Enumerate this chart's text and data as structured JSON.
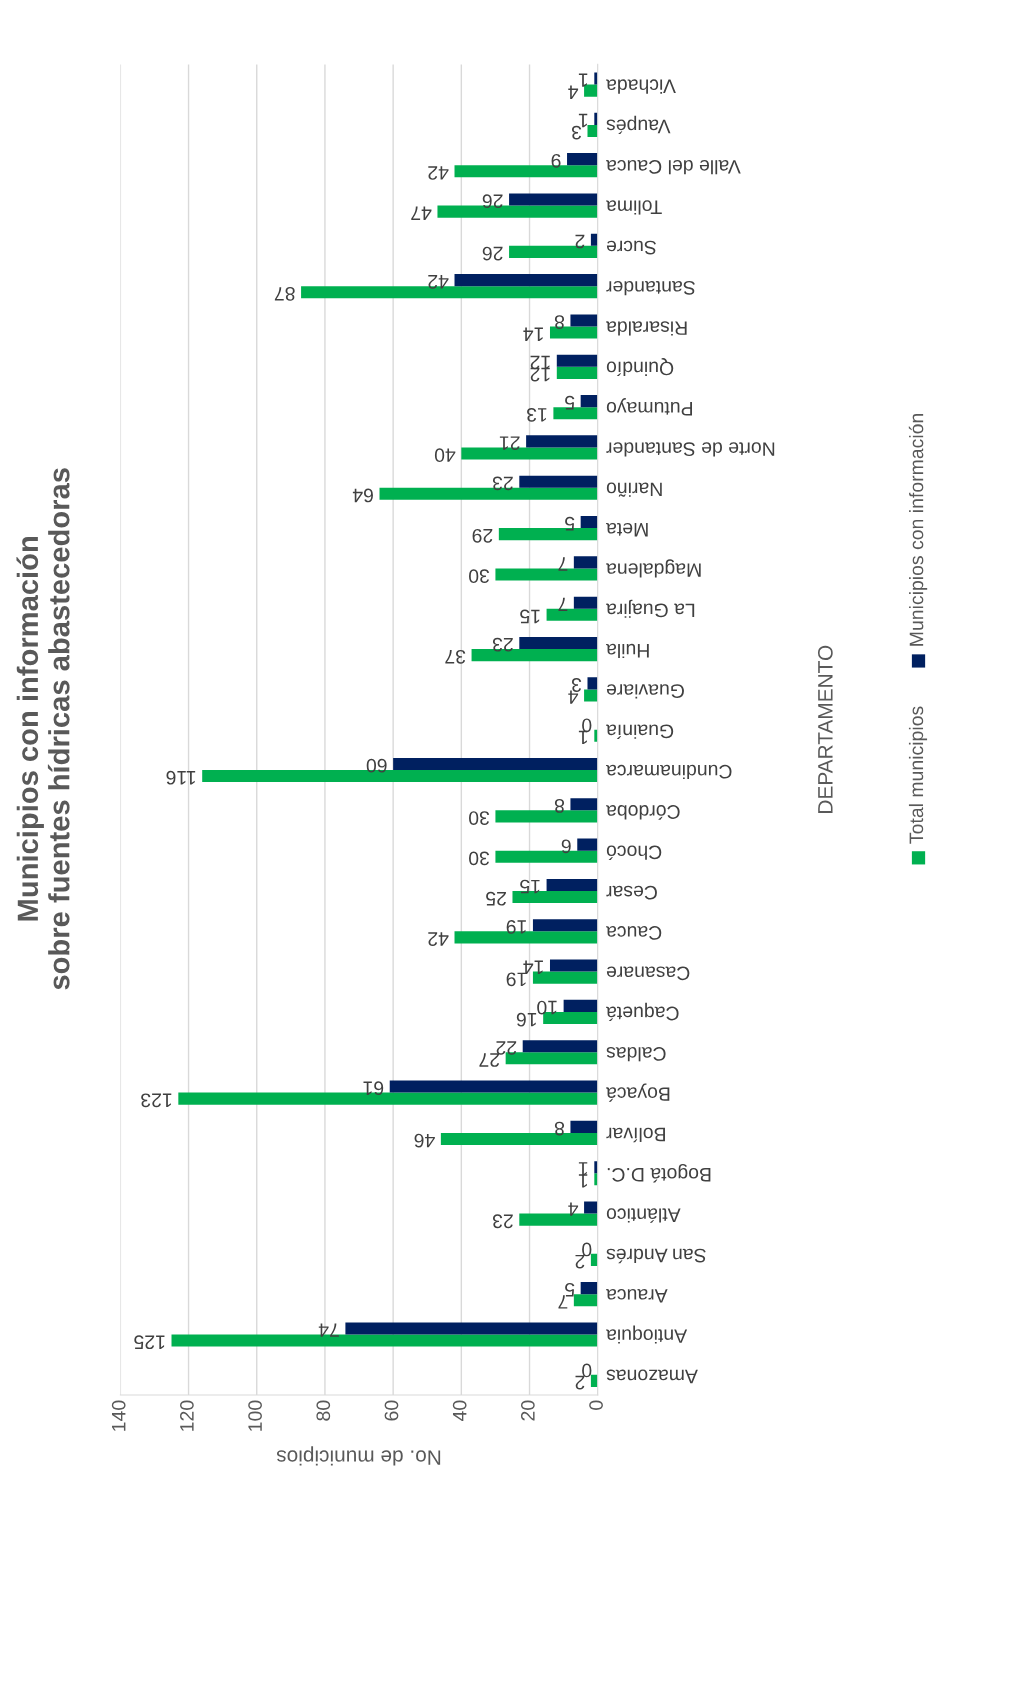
{
  "chart_data": {
    "type": "bar",
    "orientation": "horizontal",
    "title": "Municipios con información\nsobre fuentes hídricas abastecedoras",
    "xlabel": "No. de municipios",
    "ylabel": "DEPARTAMENTO",
    "categories": [
      "Vichada",
      "Vaupés",
      "Valle del Cauca",
      "Tolima",
      "Sucre",
      "Santander",
      "Risaralda",
      "Quindío",
      "Putumayo",
      "Norte de Santander",
      "Nariño",
      "Meta",
      "Magdalena",
      "La Guajira",
      "Huila",
      "Guaviare",
      "Guainía",
      "Cundinamarca",
      "Córdoba",
      "Chocó",
      "Cesar",
      "Cauca",
      "Casanare",
      "Caquetá",
      "Caldas",
      "Boyacá",
      "Bolívar",
      "Bogotá D.C.",
      "Atlántico",
      "San Andrés",
      "Arauca",
      "Antioquia",
      "Amazonas"
    ],
    "series": [
      {
        "name": "Total municipios",
        "color": "#00b050",
        "values": [
          4,
          3,
          42,
          47,
          26,
          87,
          14,
          12,
          13,
          40,
          64,
          29,
          30,
          15,
          37,
          4,
          1,
          116,
          30,
          30,
          25,
          42,
          19,
          16,
          27,
          123,
          46,
          1,
          23,
          2,
          7,
          125,
          2
        ]
      },
      {
        "name": "Municipios con información",
        "color": "#002060",
        "values": [
          1,
          1,
          9,
          26,
          2,
          42,
          8,
          12,
          5,
          21,
          23,
          5,
          7,
          7,
          23,
          3,
          0,
          60,
          8,
          6,
          15,
          19,
          14,
          10,
          22,
          61,
          8,
          1,
          4,
          0,
          5,
          74,
          0
        ]
      }
    ],
    "xlim": [
      140,
      0
    ],
    "xticks": [
      0,
      20,
      40,
      60,
      80,
      100,
      120,
      140
    ],
    "grid": "x",
    "legend": "right",
    "data_labels": true
  }
}
